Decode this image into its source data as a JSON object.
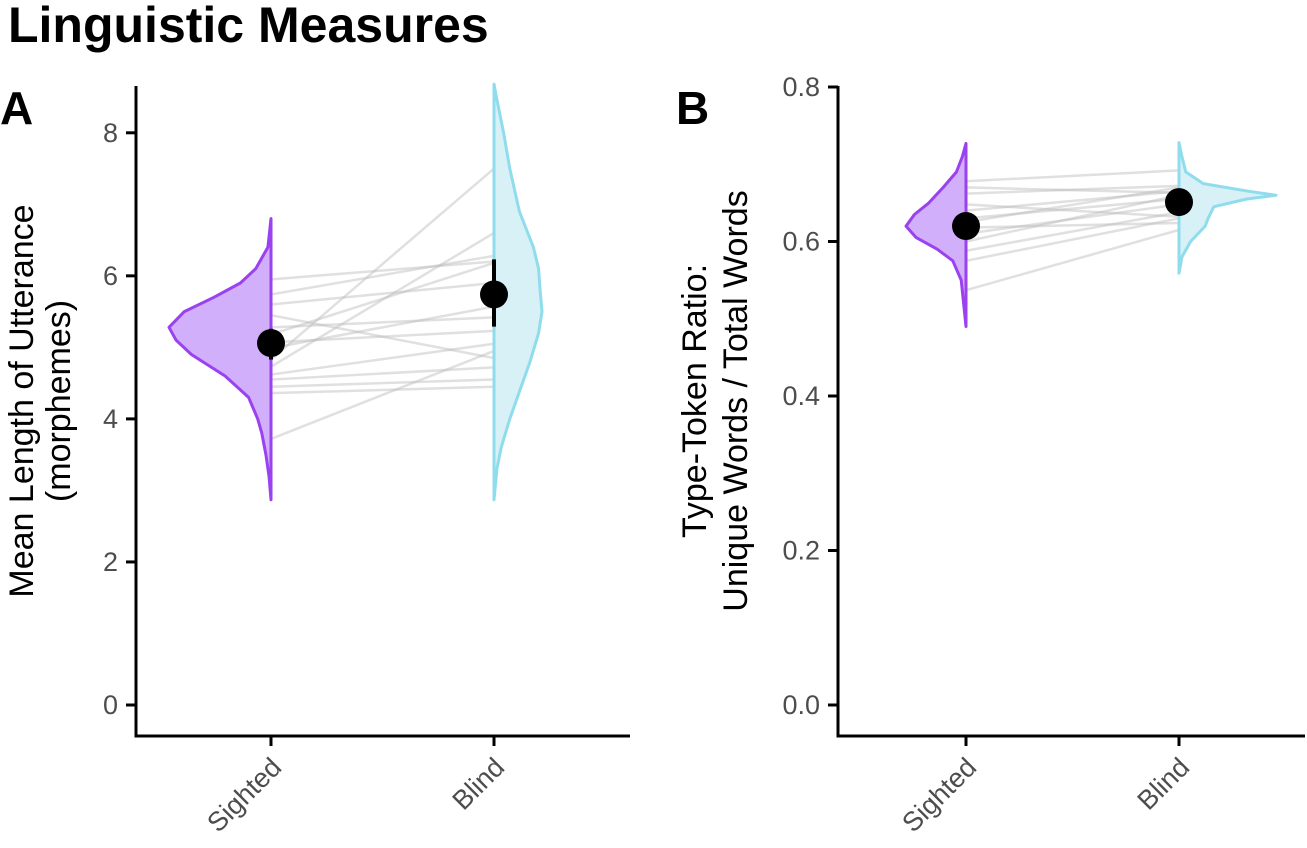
{
  "title": "Linguistic Measures",
  "colors": {
    "sighted": "#9B42F0",
    "sighted_fill": "#CCA6F9",
    "blind": "#8FDDEC",
    "blind_fill": "#D3F0F6",
    "pair_line": "#BBBBBB",
    "point": "#000000"
  },
  "chart_data": [
    {
      "type": "scatter",
      "panel_label": "A",
      "categories": [
        "Sighted",
        "Blind"
      ],
      "ylabel_lines": [
        "Mean Length of Utterance",
        "(morphemes)"
      ],
      "ylim": [
        0,
        8.7
      ],
      "yticks": [
        0,
        2,
        4,
        6,
        8
      ],
      "ytick_labels": [
        "0",
        "2",
        "4",
        "6",
        "8"
      ],
      "means": [
        5.06,
        5.74
      ],
      "error_bars": [
        [
          4.83,
          5.26
        ],
        [
          5.29,
          6.23
        ]
      ],
      "violins": [
        {
          "group": "Sighted",
          "profile": [
            [
              2.87,
              0.0
            ],
            [
              3.2,
              0.02
            ],
            [
              3.5,
              0.05
            ],
            [
              3.8,
              0.09
            ],
            [
              4.0,
              0.13
            ],
            [
              4.3,
              0.22
            ],
            [
              4.6,
              0.45
            ],
            [
              4.9,
              0.78
            ],
            [
              5.1,
              0.93
            ],
            [
              5.28,
              1.0
            ],
            [
              5.5,
              0.85
            ],
            [
              5.7,
              0.56
            ],
            [
              5.9,
              0.3
            ],
            [
              6.1,
              0.15
            ],
            [
              6.4,
              0.03
            ],
            [
              6.8,
              0.0
            ]
          ]
        },
        {
          "group": "Blind",
          "profile": [
            [
              2.87,
              0.0
            ],
            [
              3.3,
              0.06
            ],
            [
              3.6,
              0.15
            ],
            [
              4.0,
              0.33
            ],
            [
              4.4,
              0.54
            ],
            [
              4.8,
              0.75
            ],
            [
              5.2,
              0.93
            ],
            [
              5.5,
              1.0
            ],
            [
              5.8,
              0.96
            ],
            [
              6.1,
              0.93
            ],
            [
              6.4,
              0.82
            ],
            [
              6.9,
              0.53
            ],
            [
              7.5,
              0.33
            ],
            [
              8.0,
              0.2
            ],
            [
              8.4,
              0.08
            ],
            [
              8.68,
              0.0
            ]
          ]
        }
      ],
      "pairs": [
        [
          3.72,
          4.95
        ],
        [
          4.36,
          4.45
        ],
        [
          4.45,
          4.55
        ],
        [
          4.55,
          4.72
        ],
        [
          4.62,
          5.05
        ],
        [
          4.73,
          6.6
        ],
        [
          4.83,
          7.5
        ],
        [
          4.99,
          5.57
        ],
        [
          5.07,
          5.23
        ],
        [
          5.18,
          6.18
        ],
        [
          5.28,
          5.42
        ],
        [
          5.45,
          4.85
        ],
        [
          5.6,
          5.9
        ],
        [
          5.74,
          6.28
        ],
        [
          5.95,
          6.2
        ]
      ]
    },
    {
      "type": "scatter",
      "panel_label": "B",
      "categories": [
        "Sighted",
        "Blind"
      ],
      "ylabel_lines": [
        "Type-Token Ratio:",
        "Unique Words / Total Words"
      ],
      "ylim": [
        0,
        0.8
      ],
      "yticks": [
        0,
        0.2,
        0.4,
        0.6,
        0.8
      ],
      "ytick_labels": [
        "0.0",
        "0.2",
        "0.4",
        "0.6",
        "0.8"
      ],
      "means": [
        0.62,
        0.651
      ],
      "error_bars": [
        [
          0.613,
          0.628
        ],
        [
          0.643,
          0.658
        ]
      ],
      "violins": [
        {
          "group": "Sighted",
          "profile": [
            [
              0.49,
              0.0
            ],
            [
              0.52,
              0.04
            ],
            [
              0.55,
              0.08
            ],
            [
              0.575,
              0.22
            ],
            [
              0.59,
              0.48
            ],
            [
              0.605,
              0.83
            ],
            [
              0.62,
              1.0
            ],
            [
              0.635,
              0.86
            ],
            [
              0.65,
              0.62
            ],
            [
              0.67,
              0.38
            ],
            [
              0.69,
              0.16
            ],
            [
              0.71,
              0.06
            ],
            [
              0.727,
              0.0
            ]
          ]
        },
        {
          "group": "Blind",
          "profile": [
            [
              0.559,
              0.0
            ],
            [
              0.58,
              0.03
            ],
            [
              0.6,
              0.12
            ],
            [
              0.62,
              0.27
            ],
            [
              0.63,
              0.3
            ],
            [
              0.645,
              0.36
            ],
            [
              0.655,
              0.7
            ],
            [
              0.66,
              1.0
            ],
            [
              0.665,
              0.72
            ],
            [
              0.675,
              0.25
            ],
            [
              0.69,
              0.07
            ],
            [
              0.71,
              0.03
            ],
            [
              0.728,
              0.0
            ]
          ]
        }
      ],
      "pairs": [
        [
          0.537,
          0.615
        ],
        [
          0.575,
          0.63
        ],
        [
          0.588,
          0.638
        ],
        [
          0.6,
          0.66
        ],
        [
          0.61,
          0.648
        ],
        [
          0.618,
          0.624
        ],
        [
          0.625,
          0.67
        ],
        [
          0.63,
          0.655
        ],
        [
          0.64,
          0.665
        ],
        [
          0.648,
          0.632
        ],
        [
          0.662,
          0.672
        ],
        [
          0.67,
          0.663
        ],
        [
          0.678,
          0.692
        ]
      ]
    }
  ]
}
